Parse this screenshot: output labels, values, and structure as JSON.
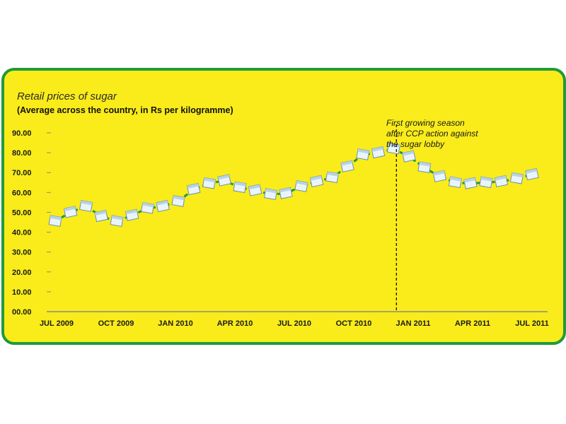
{
  "chart_data": {
    "type": "line",
    "title": "Retail prices of sugar",
    "subtitle": "(Average across the country, in Rs per kilogramme)",
    "ylim": [
      0,
      90
    ],
    "yticks": [
      "00.00",
      "10.00",
      "20.00",
      "30.00",
      "40.00",
      "50.00",
      "60.00",
      "70.00",
      "80.00",
      "90.00"
    ],
    "xticks": [
      "JUL 2009",
      "OCT 2009",
      "JAN 2010",
      "APR 2010",
      "JUL 2010",
      "OCT 2010",
      "JAN 2011",
      "APR 2011",
      "JUL 2011"
    ],
    "series": [
      {
        "values": [
          45.5,
          50,
          53,
          48,
          45.5,
          48.5,
          52,
          53,
          55.5,
          61.5,
          64.5,
          66,
          62.5,
          61,
          59,
          59.5,
          63,
          65.5,
          67.5,
          73,
          79,
          80,
          82,
          78,
          72.5,
          68,
          65,
          64.5,
          65,
          65.5,
          67,
          69
        ]
      }
    ],
    "annotation": {
      "lines": [
        "First growing season",
        "after CCP action against",
        "the sugar lobby"
      ],
      "x_index": 22
    },
    "colors": {
      "background": "#f9ec1a",
      "border": "#1f9a3a",
      "line": "#1f9a3a",
      "axis": "#8a8a8a"
    }
  }
}
